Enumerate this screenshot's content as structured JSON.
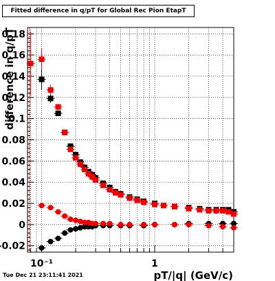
{
  "title": "Fitted difference in q/pT for Global Rec Pion EtapT",
  "timestamp": "Tue Dec 21 23:11:41 2021",
  "chart_data": {
    "type": "scatter",
    "xlabel": "pT/|q| (GeV/c)",
    "ylabel": "difference in q/pT",
    "x_scale": "log",
    "xlim": [
      0.075,
      5.0
    ],
    "ylim": [
      -0.026,
      0.186
    ],
    "grid": true,
    "x_tick_labels": [
      {
        "value": 0.1,
        "label": "10⁻¹"
      },
      {
        "value": 1,
        "label": "1"
      }
    ],
    "y_tick_labels": [
      {
        "value": -0.02,
        "label": "-0.02"
      },
      {
        "value": 0,
        "label": "0"
      },
      {
        "value": 0.02,
        "label": "0.02"
      },
      {
        "value": 0.04,
        "label": "0.04"
      },
      {
        "value": 0.06,
        "label": "0.06"
      },
      {
        "value": 0.08,
        "label": "0.08"
      },
      {
        "value": 0.1,
        "label": "0.1"
      },
      {
        "value": 0.12,
        "label": "0.12"
      },
      {
        "value": 0.14,
        "label": "0.14"
      },
      {
        "value": 0.16,
        "label": "0.16"
      },
      {
        "value": 0.18,
        "label": "0.18"
      }
    ],
    "series": [
      {
        "color": "#000000",
        "marker": "square",
        "x": [
          0.1,
          0.12,
          0.14,
          0.16,
          0.18,
          0.2,
          0.22,
          0.24,
          0.26,
          0.28,
          0.3,
          0.35,
          0.4,
          0.45,
          0.5,
          0.6,
          0.7,
          0.8,
          1.0,
          1.2,
          1.5,
          2.0,
          2.5,
          3.0,
          3.5,
          4.0,
          4.5,
          5.0
        ],
        "y": [
          0.137,
          0.119,
          0.105,
          0.087,
          0.074,
          0.066,
          0.059,
          0.054,
          0.05,
          0.047,
          0.044,
          0.039,
          0.035,
          0.031,
          0.029,
          0.026,
          0.024,
          0.022,
          0.02,
          0.018,
          0.017,
          0.016,
          0.015,
          0.014,
          0.014,
          0.014,
          0.014,
          0.012
        ],
        "yerr": [
          0.01,
          0.004,
          0.002,
          0.0015,
          0.001,
          0.001,
          0.001,
          0.001,
          0.001,
          0.001,
          0.001,
          0.001,
          0.001,
          0.001,
          0.001,
          0.001,
          0.001,
          0.001,
          0.001,
          0.001,
          0.001,
          0.001,
          0.001,
          0.001,
          0.001,
          0.001,
          0.001,
          0.002
        ]
      },
      {
        "color": "#ee0000",
        "marker": "square",
        "x": [
          0.08,
          0.1,
          0.12,
          0.14,
          0.16,
          0.18,
          0.2,
          0.22,
          0.24,
          0.26,
          0.28,
          0.3,
          0.35,
          0.4,
          0.45,
          0.5,
          0.6,
          0.7,
          0.8,
          1.0,
          1.2,
          1.5,
          2.0,
          2.5,
          3.0,
          3.5,
          4.0,
          4.5,
          5.0
        ],
        "y": [
          0.152,
          0.156,
          0.127,
          0.111,
          0.087,
          0.071,
          0.063,
          0.057,
          0.052,
          0.048,
          0.045,
          0.042,
          0.037,
          0.033,
          0.03,
          0.028,
          0.025,
          0.023,
          0.021,
          0.019,
          0.018,
          0.017,
          0.015,
          0.014,
          0.013,
          0.013,
          0.013,
          0.012,
          0.01
        ],
        "yerr": [
          0.03,
          0.01,
          0.005,
          0.003,
          0.002,
          0.0015,
          0.001,
          0.001,
          0.001,
          0.001,
          0.001,
          0.001,
          0.001,
          0.001,
          0.001,
          0.001,
          0.001,
          0.001,
          0.001,
          0.001,
          0.001,
          0.001,
          0.001,
          0.001,
          0.001,
          0.001,
          0.001,
          0.001,
          0.002
        ]
      },
      {
        "color": "#000000",
        "marker": "circle",
        "x": [
          0.1,
          0.12,
          0.14,
          0.16,
          0.18,
          0.2,
          0.22,
          0.24,
          0.26,
          0.28,
          0.3,
          0.35,
          0.4,
          0.5,
          0.6,
          0.8,
          1.0,
          1.5,
          2.0,
          3.0,
          4.0,
          5.0
        ],
        "y": [
          -0.022,
          -0.016,
          -0.013,
          -0.008,
          -0.005,
          -0.004,
          -0.003,
          -0.002,
          -0.002,
          -0.002,
          -0.001,
          -0.001,
          -0.001,
          -0.001,
          -0.001,
          -0.001,
          0.0,
          0.0,
          0.001,
          0.001,
          0.001,
          0.001
        ],
        "yerr": [
          0.002,
          0.002,
          0.001,
          0.001,
          0.001,
          0.001,
          0.0005,
          0.0005,
          0.0005,
          0.0005,
          0.0005,
          0.0005,
          0.0005,
          0.0005,
          0.0005,
          0.0005,
          0.0005,
          0.0005,
          0.0005,
          0.0005,
          0.0005,
          0.0005
        ]
      },
      {
        "color": "#ee0000",
        "marker": "circle",
        "x": [
          0.1,
          0.12,
          0.14,
          0.16,
          0.18,
          0.2,
          0.22,
          0.24,
          0.26,
          0.28,
          0.3,
          0.35,
          0.4,
          0.5,
          0.6,
          0.8,
          1.0,
          1.5,
          2.0,
          3.0,
          4.0,
          5.0
        ],
        "y": [
          0.018,
          0.016,
          0.012,
          0.008,
          0.005,
          0.004,
          0.003,
          0.002,
          0.002,
          0.001,
          0.001,
          0.001,
          0.001,
          0.0,
          0.0,
          0.0,
          0.0,
          0.0,
          0.0,
          -0.001,
          -0.002,
          -0.003
        ],
        "yerr": [
          0.002,
          0.002,
          0.001,
          0.001,
          0.001,
          0.001,
          0.0005,
          0.0005,
          0.0005,
          0.0005,
          0.0005,
          0.0005,
          0.0005,
          0.0005,
          0.0005,
          0.0005,
          0.0005,
          0.0005,
          0.0005,
          0.0005,
          0.0005,
          0.001
        ]
      }
    ]
  }
}
